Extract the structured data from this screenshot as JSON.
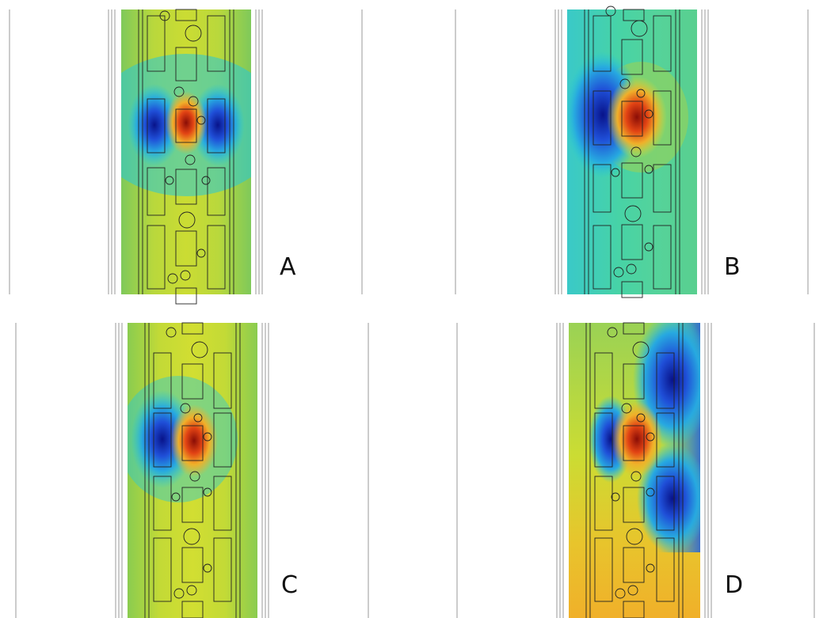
{
  "figure": {
    "panels": [
      {
        "id": "A",
        "label": "A",
        "hot_spots": 1,
        "cold_spots": 2,
        "background": "yellow-green"
      },
      {
        "id": "B",
        "label": "B",
        "hot_spots": 1,
        "cold_spots": 1,
        "background": "cyan-green"
      },
      {
        "id": "C",
        "label": "C",
        "hot_spots": 1,
        "cold_spots": 1,
        "background": "yellow"
      },
      {
        "id": "D",
        "label": "D",
        "hot_spots": 1,
        "cold_spots": 3,
        "background": "yellow-orange"
      }
    ],
    "colormap": [
      "#08138a",
      "#1f5fe0",
      "#27c9d8",
      "#47d39a",
      "#9ad255",
      "#d8df35",
      "#f0b02a",
      "#e24414",
      "#8a0d06"
    ]
  }
}
